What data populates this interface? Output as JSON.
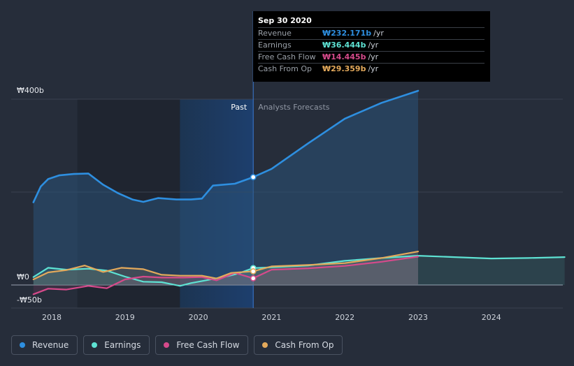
{
  "chart_data": {
    "type": "area",
    "title": "",
    "xlabel": "",
    "ylabel": "",
    "currency_symbol": "₩",
    "ylim": [
      -50,
      400
    ],
    "y_ticks": [
      "₩400b",
      "₩0",
      "-₩50b"
    ],
    "x_ticks": [
      "2018",
      "2019",
      "2020",
      "2021",
      "2022",
      "2023",
      "2024"
    ],
    "divider_date": 2020.75,
    "past_label": "Past",
    "forecast_label": "Analysts Forecasts",
    "series": [
      {
        "name": "Revenue",
        "color": "#2e8fe0",
        "points": [
          [
            2017.75,
            178
          ],
          [
            2017.85,
            212
          ],
          [
            2017.95,
            228
          ],
          [
            2018.1,
            236
          ],
          [
            2018.3,
            239
          ],
          [
            2018.5,
            240
          ],
          [
            2018.7,
            216
          ],
          [
            2018.9,
            198
          ],
          [
            2019.1,
            184
          ],
          [
            2019.25,
            179
          ],
          [
            2019.45,
            187
          ],
          [
            2019.7,
            184
          ],
          [
            2019.9,
            184
          ],
          [
            2020.05,
            186
          ],
          [
            2020.2,
            214
          ],
          [
            2020.5,
            218
          ],
          [
            2020.75,
            232.2
          ],
          [
            2021.0,
            250
          ],
          [
            2021.5,
            305
          ],
          [
            2022.0,
            358
          ],
          [
            2022.5,
            392
          ],
          [
            2023.0,
            418
          ]
        ]
      },
      {
        "name": "Earnings",
        "color": "#5ee2d3",
        "points": [
          [
            2017.75,
            17
          ],
          [
            2017.95,
            37
          ],
          [
            2018.2,
            33
          ],
          [
            2018.5,
            35
          ],
          [
            2018.75,
            31
          ],
          [
            2019.0,
            18
          ],
          [
            2019.25,
            7
          ],
          [
            2019.5,
            6
          ],
          [
            2019.75,
            -2
          ],
          [
            2019.9,
            4
          ],
          [
            2020.1,
            10
          ],
          [
            2020.4,
            19
          ],
          [
            2020.55,
            25
          ],
          [
            2020.75,
            36.4
          ],
          [
            2021.0,
            38
          ],
          [
            2021.5,
            42
          ],
          [
            2022.0,
            52
          ],
          [
            2022.5,
            58
          ],
          [
            2023.0,
            63
          ],
          [
            2023.5,
            60
          ],
          [
            2024.0,
            57
          ],
          [
            2024.5,
            58
          ],
          [
            2025.0,
            60
          ]
        ]
      },
      {
        "name": "Free Cash Flow",
        "color": "#d64a8b",
        "points": [
          [
            2017.75,
            -20
          ],
          [
            2017.95,
            -8
          ],
          [
            2018.2,
            -10
          ],
          [
            2018.5,
            -2
          ],
          [
            2018.75,
            -7
          ],
          [
            2019.0,
            12
          ],
          [
            2019.25,
            18
          ],
          [
            2019.5,
            16
          ],
          [
            2019.8,
            16
          ],
          [
            2020.05,
            17
          ],
          [
            2020.25,
            10
          ],
          [
            2020.5,
            26
          ],
          [
            2020.75,
            14.4
          ],
          [
            2021.0,
            33
          ],
          [
            2021.5,
            36
          ],
          [
            2022.0,
            41
          ],
          [
            2022.5,
            50
          ],
          [
            2023.0,
            61
          ]
        ]
      },
      {
        "name": "Cash From Op",
        "color": "#e3a95b",
        "points": [
          [
            2017.75,
            12
          ],
          [
            2017.95,
            27
          ],
          [
            2018.2,
            32
          ],
          [
            2018.45,
            42
          ],
          [
            2018.7,
            28
          ],
          [
            2018.95,
            37
          ],
          [
            2019.25,
            34
          ],
          [
            2019.5,
            22
          ],
          [
            2019.75,
            20
          ],
          [
            2020.05,
            20
          ],
          [
            2020.25,
            14
          ],
          [
            2020.45,
            26
          ],
          [
            2020.75,
            29.4
          ],
          [
            2021.0,
            40
          ],
          [
            2021.5,
            43
          ],
          [
            2022.0,
            47
          ],
          [
            2022.5,
            58
          ],
          [
            2023.0,
            72
          ]
        ]
      }
    ]
  },
  "tooltip": {
    "date": "Sep 30 2020",
    "rows": [
      {
        "label": "Revenue",
        "value": "₩232.171b",
        "unit": "/yr",
        "color": "#2e8fe0"
      },
      {
        "label": "Earnings",
        "value": "₩36.444b",
        "unit": "/yr",
        "color": "#5ee2d3"
      },
      {
        "label": "Free Cash Flow",
        "value": "₩14.445b",
        "unit": "/yr",
        "color": "#d64a8b"
      },
      {
        "label": "Cash From Op",
        "value": "₩29.359b",
        "unit": "/yr",
        "color": "#e3a95b"
      }
    ]
  },
  "legend": [
    {
      "label": "Revenue",
      "color": "#2e8fe0"
    },
    {
      "label": "Earnings",
      "color": "#5ee2d3"
    },
    {
      "label": "Free Cash Flow",
      "color": "#d64a8b"
    },
    {
      "label": "Cash From Op",
      "color": "#e3a95b"
    }
  ]
}
